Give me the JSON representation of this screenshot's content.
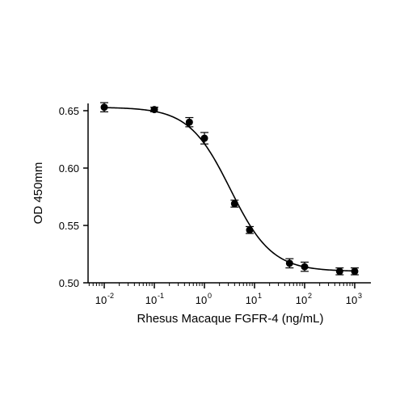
{
  "chart_data": {
    "type": "scatter",
    "xlabel": "Rhesus Macaque FGFR-4 (ng/mL)",
    "ylabel": "OD 450mm",
    "x_scale": "log",
    "xlim": [
      0.005,
      1500
    ],
    "ylim": [
      0.5,
      0.66
    ],
    "x_ticks": [
      {
        "value": 0.01,
        "base": "10",
        "exp": "-2"
      },
      {
        "value": 0.1,
        "base": "10",
        "exp": "-1"
      },
      {
        "value": 1,
        "base": "10",
        "exp": "0"
      },
      {
        "value": 10,
        "base": "10",
        "exp": "1"
      },
      {
        "value": 100,
        "base": "10",
        "exp": "2"
      },
      {
        "value": 1000,
        "base": "10",
        "exp": "3"
      }
    ],
    "y_ticks": [
      "0.50",
      "0.55",
      "0.60",
      "0.65"
    ],
    "grid": false,
    "series": [
      {
        "points": [
          {
            "x": 0.01,
            "y": 0.653,
            "err": 0.004
          },
          {
            "x": 0.1,
            "y": 0.651,
            "err": 0.002
          },
          {
            "x": 0.5,
            "y": 0.64,
            "err": 0.004
          },
          {
            "x": 1,
            "y": 0.626,
            "err": 0.005
          },
          {
            "x": 4,
            "y": 0.569,
            "err": 0.003
          },
          {
            "x": 8,
            "y": 0.546,
            "err": 0.003
          },
          {
            "x": 50,
            "y": 0.517,
            "err": 0.004
          },
          {
            "x": 100,
            "y": 0.514,
            "err": 0.004
          },
          {
            "x": 500,
            "y": 0.51,
            "err": 0.003
          },
          {
            "x": 1000,
            "y": 0.51,
            "err": 0.003
          }
        ]
      }
    ],
    "colors": {
      "marker": "#000000",
      "line": "#000000",
      "axis": "#000000"
    }
  }
}
